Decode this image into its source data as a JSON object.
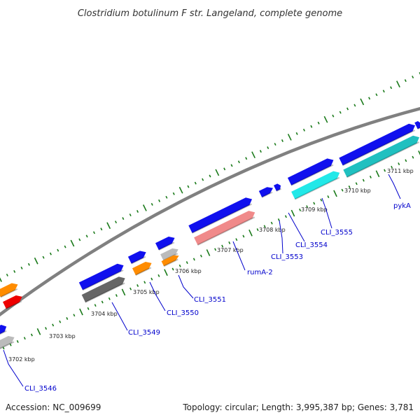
{
  "title": "Clostridium botulinum F str. Langeland, complete genome",
  "footer": {
    "accession": "Accession: NC_009699",
    "summary": "Topology: circular; Length: 3,995,387 bp; Genes: 3,781"
  },
  "colors": {
    "backbone": "#808080",
    "tick": "#1a7a1a",
    "label": "#0000cc",
    "blue": "#1010ee",
    "orange": "#ff8c00",
    "red": "#ee0000",
    "grey": "#bbbbbb",
    "darkgrey": "#666666",
    "pink": "#f08a8a",
    "cyan": "#22e8e8",
    "teal": "#20c0c0"
  },
  "scale_labels": [
    "3702 kbp",
    "3703 kbp",
    "3704 kbp",
    "3705 kbp",
    "3706 kbp",
    "3707 kbp",
    "3708 kbp",
    "3709 kbp",
    "3710 kbp",
    "3711 kbp"
  ],
  "gene_labels": [
    "CLI_3546",
    "CLI_3549",
    "CLI_3550",
    "CLI_3551",
    "rumA-2",
    "CLI_3553",
    "CLI_3554",
    "CLI_3555",
    "pykA"
  ]
}
